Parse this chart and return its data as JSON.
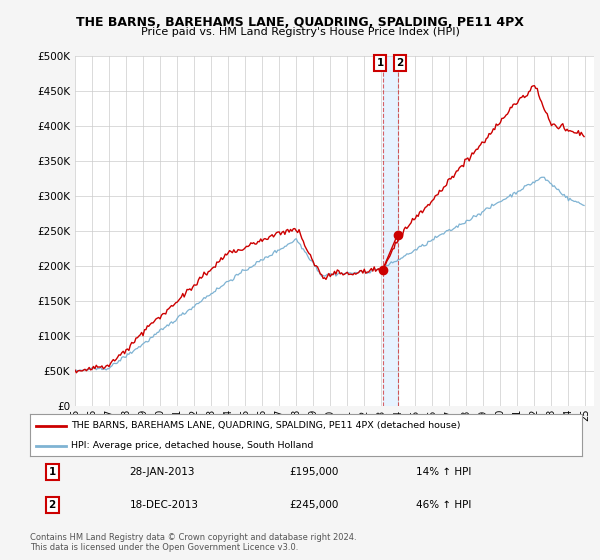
{
  "title": "THE BARNS, BAREHAMS LANE, QUADRING, SPALDING, PE11 4PX",
  "subtitle": "Price paid vs. HM Land Registry's House Price Index (HPI)",
  "ylabel_ticks": [
    "£0",
    "£50K",
    "£100K",
    "£150K",
    "£200K",
    "£250K",
    "£300K",
    "£350K",
    "£400K",
    "£450K",
    "£500K"
  ],
  "ytick_values": [
    0,
    50000,
    100000,
    150000,
    200000,
    250000,
    300000,
    350000,
    400000,
    450000,
    500000
  ],
  "sale1_date": "28-JAN-2013",
  "sale1_price": 195000,
  "sale1_hpi_text": "14% ↑ HPI",
  "sale1_x": 2013.08,
  "sale2_date": "18-DEC-2013",
  "sale2_price": 245000,
  "sale2_hpi_text": "46% ↑ HPI",
  "sale2_x": 2013.96,
  "red_color": "#cc0000",
  "blue_color": "#7fb3d3",
  "vline_color": "#cc0000",
  "shade_color": "#ddeeff",
  "legend_label1": "THE BARNS, BAREHAMS LANE, QUADRING, SPALDING, PE11 4PX (detached house)",
  "legend_label2": "HPI: Average price, detached house, South Holland",
  "footnote1": "Contains HM Land Registry data © Crown copyright and database right 2024.",
  "footnote2": "This data is licensed under the Open Government Licence v3.0.",
  "background_color": "#f5f5f5",
  "plot_bg": "#ffffff",
  "title_fontsize": 9,
  "subtitle_fontsize": 8
}
